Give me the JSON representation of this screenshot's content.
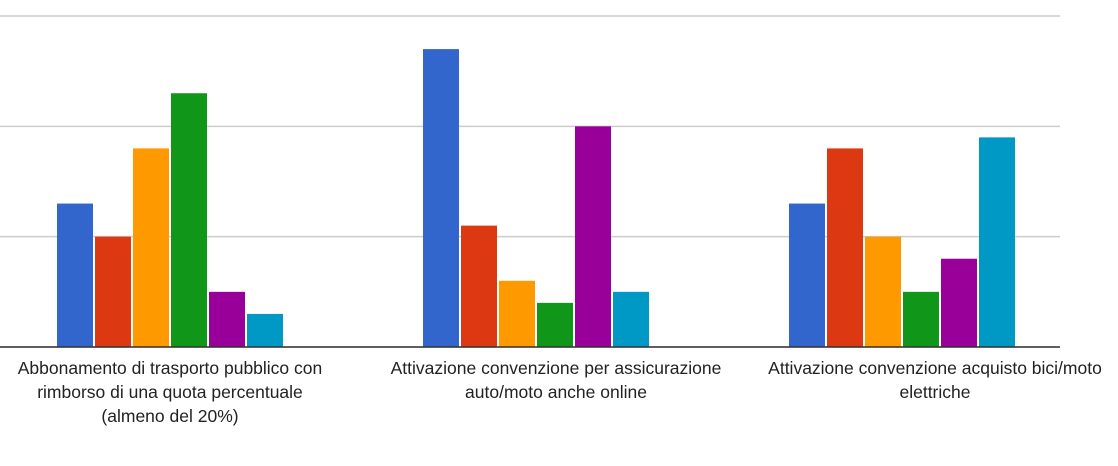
{
  "chart_data": {
    "type": "bar",
    "categories": [
      "Abbonamento di trasporto pubblico con rimborso di una quota percentuale (almeno del 20%)",
      "Attivazione convenzione per assicurazione auto/moto anche online",
      "Attivazione convenzione acquisto bici/moto elettriche"
    ],
    "series": [
      {
        "color": "#3366cc",
        "values": [
          13,
          27,
          13
        ]
      },
      {
        "color": "#dc3912",
        "values": [
          10,
          11,
          18
        ]
      },
      {
        "color": "#ff9900",
        "values": [
          18,
          6,
          10
        ]
      },
      {
        "color": "#109618",
        "values": [
          23,
          4,
          5
        ]
      },
      {
        "color": "#990099",
        "values": [
          5,
          20,
          8
        ]
      },
      {
        "color": "#0099c6",
        "values": [
          3,
          5,
          19
        ]
      }
    ],
    "ylim": [
      0,
      30
    ],
    "yticks": [
      0,
      10,
      20,
      30
    ],
    "grid": true
  }
}
